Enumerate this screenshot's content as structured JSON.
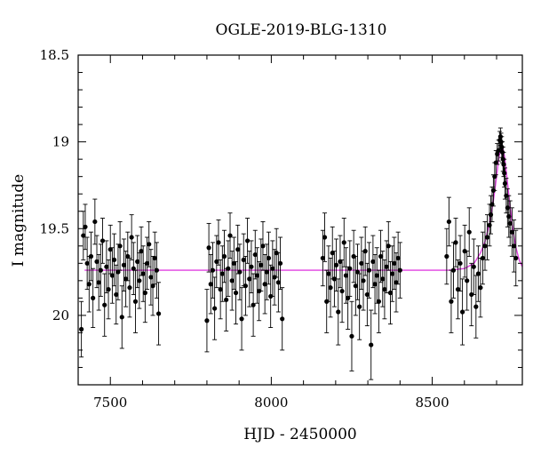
{
  "chart_data": {
    "type": "scatter",
    "title": "OGLE-2019-BLG-1310",
    "xlabel": "HJD - 2450000",
    "ylabel": "I magnitude",
    "xlim": [
      7400,
      8780
    ],
    "ylim": [
      20.4,
      18.5
    ],
    "y_axis_inverted": true,
    "grid": false,
    "x_ticks": [
      "7500",
      "8000",
      "8500"
    ],
    "x_tick_values": [
      7500,
      8000,
      8500
    ],
    "y_ticks": [
      "18.5",
      "19",
      "19.5",
      "20"
    ],
    "y_tick_values": [
      18.5,
      19.0,
      19.5,
      20.0
    ],
    "colors": {
      "points": "#000000",
      "model": "#e040e0",
      "axes": "#000000"
    },
    "series": [
      {
        "kind": "observations",
        "marker": "filled-circle-with-errorbars",
        "x": [
          7410,
          7416,
          7422,
          7428,
          7434,
          7440,
          7446,
          7452,
          7458,
          7464,
          7470,
          7476,
          7482,
          7488,
          7494,
          7500,
          7506,
          7512,
          7518,
          7524,
          7530,
          7536,
          7542,
          7548,
          7554,
          7560,
          7566,
          7572,
          7578,
          7584,
          7590,
          7596,
          7602,
          7608,
          7614,
          7620,
          7626,
          7632,
          7638,
          7644,
          7650,
          7800,
          7806,
          7812,
          7818,
          7824,
          7830,
          7836,
          7842,
          7848,
          7854,
          7860,
          7866,
          7872,
          7878,
          7884,
          7890,
          7896,
          7902,
          7908,
          7914,
          7920,
          7926,
          7932,
          7938,
          7944,
          7950,
          7956,
          7962,
          7968,
          7974,
          7980,
          7986,
          7992,
          7998,
          8004,
          8010,
          8016,
          8022,
          8028,
          8034,
          8160,
          8166,
          8172,
          8178,
          8184,
          8190,
          8196,
          8202,
          8208,
          8214,
          8220,
          8226,
          8232,
          8238,
          8244,
          8250,
          8256,
          8262,
          8268,
          8274,
          8280,
          8286,
          8292,
          8298,
          8304,
          8310,
          8316,
          8322,
          8328,
          8334,
          8340,
          8346,
          8352,
          8358,
          8364,
          8370,
          8376,
          8382,
          8388,
          8394,
          8400,
          8545,
          8552,
          8559,
          8566,
          8573,
          8580,
          8587,
          8594,
          8601,
          8608,
          8615,
          8622,
          8629,
          8636,
          8643,
          8650,
          8657,
          8664,
          8671,
          8678,
          8682,
          8686,
          8690,
          8694,
          8698,
          8702,
          8706,
          8710,
          8712,
          8714,
          8716,
          8718,
          8720,
          8722,
          8724,
          8726,
          8730,
          8734,
          8738,
          8742,
          8748,
          8754,
          8760
        ],
        "y": [
          20.08,
          19.54,
          19.49,
          19.7,
          19.82,
          19.66,
          19.9,
          19.46,
          19.69,
          19.81,
          19.74,
          19.57,
          19.94,
          19.72,
          19.85,
          19.62,
          19.77,
          19.68,
          19.88,
          19.75,
          19.6,
          20.01,
          19.71,
          19.79,
          19.66,
          19.84,
          19.55,
          19.73,
          19.92,
          19.69,
          19.8,
          19.63,
          19.76,
          19.87,
          19.7,
          19.59,
          19.78,
          19.83,
          19.67,
          19.74,
          19.99,
          20.03,
          19.61,
          19.82,
          19.74,
          19.96,
          19.69,
          19.58,
          19.85,
          19.76,
          19.66,
          19.91,
          19.73,
          19.54,
          19.8,
          19.7,
          19.87,
          19.62,
          19.75,
          20.02,
          19.68,
          19.83,
          19.57,
          19.79,
          19.72,
          19.94,
          19.65,
          19.77,
          19.86,
          19.71,
          19.6,
          19.82,
          19.75,
          19.67,
          19.89,
          19.73,
          19.78,
          19.64,
          19.81,
          19.7,
          20.02,
          19.67,
          19.55,
          19.92,
          19.76,
          19.84,
          19.64,
          19.79,
          19.71,
          19.98,
          19.69,
          19.86,
          19.58,
          19.77,
          19.9,
          19.73,
          20.12,
          19.66,
          19.83,
          19.75,
          19.95,
          19.7,
          19.8,
          19.63,
          19.88,
          19.74,
          20.17,
          19.69,
          19.82,
          19.77,
          19.92,
          19.66,
          19.79,
          19.85,
          19.72,
          19.6,
          19.87,
          19.76,
          19.7,
          19.81,
          19.67,
          19.74,
          19.66,
          19.46,
          19.92,
          19.74,
          19.58,
          19.85,
          19.7,
          19.98,
          19.63,
          19.8,
          19.52,
          19.88,
          19.72,
          19.95,
          19.76,
          19.84,
          19.67,
          19.6,
          19.55,
          19.48,
          19.42,
          19.36,
          19.28,
          19.2,
          19.12,
          19.07,
          19.05,
          18.99,
          18.97,
          19.0,
          19.03,
          19.06,
          19.1,
          19.13,
          19.18,
          19.24,
          19.31,
          19.38,
          19.43,
          19.47,
          19.52,
          19.6,
          19.67
        ],
        "yerr": [
          0.16,
          0.14,
          0.13,
          0.15,
          0.16,
          0.14,
          0.17,
          0.13,
          0.15,
          0.16,
          0.15,
          0.13,
          0.18,
          0.15,
          0.17,
          0.14,
          0.16,
          0.15,
          0.17,
          0.16,
          0.14,
          0.18,
          0.15,
          0.16,
          0.14,
          0.17,
          0.13,
          0.15,
          0.18,
          0.15,
          0.16,
          0.14,
          0.16,
          0.17,
          0.15,
          0.13,
          0.16,
          0.17,
          0.15,
          0.16,
          0.18,
          0.18,
          0.14,
          0.17,
          0.16,
          0.18,
          0.15,
          0.13,
          0.17,
          0.16,
          0.15,
          0.18,
          0.16,
          0.13,
          0.17,
          0.15,
          0.18,
          0.14,
          0.16,
          0.18,
          0.15,
          0.17,
          0.13,
          0.16,
          0.15,
          0.18,
          0.14,
          0.16,
          0.17,
          0.15,
          0.14,
          0.17,
          0.16,
          0.15,
          0.18,
          0.16,
          0.16,
          0.14,
          0.17,
          0.15,
          0.18,
          0.16,
          0.14,
          0.18,
          0.16,
          0.17,
          0.15,
          0.16,
          0.15,
          0.19,
          0.15,
          0.18,
          0.14,
          0.16,
          0.18,
          0.16,
          0.2,
          0.15,
          0.17,
          0.16,
          0.19,
          0.15,
          0.17,
          0.14,
          0.18,
          0.16,
          0.2,
          0.15,
          0.17,
          0.16,
          0.18,
          0.15,
          0.16,
          0.17,
          0.15,
          0.14,
          0.18,
          0.16,
          0.15,
          0.17,
          0.15,
          0.16,
          0.16,
          0.14,
          0.18,
          0.16,
          0.14,
          0.17,
          0.16,
          0.19,
          0.15,
          0.17,
          0.14,
          0.18,
          0.16,
          0.18,
          0.16,
          0.17,
          0.15,
          0.14,
          0.13,
          0.12,
          0.11,
          0.1,
          0.09,
          0.08,
          0.07,
          0.06,
          0.06,
          0.05,
          0.05,
          0.05,
          0.06,
          0.06,
          0.07,
          0.07,
          0.08,
          0.09,
          0.1,
          0.11,
          0.12,
          0.13,
          0.14,
          0.15,
          0.16
        ]
      },
      {
        "kind": "model",
        "marker": "line",
        "x": [
          7420,
          8550,
          8600,
          8630,
          8650,
          8665,
          8680,
          8690,
          8700,
          8705,
          8710,
          8715,
          8720,
          8725,
          8730,
          8740,
          8750,
          8760,
          8770,
          8780
        ],
        "y": [
          19.74,
          19.74,
          19.73,
          19.7,
          19.64,
          19.57,
          19.45,
          19.34,
          19.2,
          19.12,
          19.06,
          19.03,
          19.04,
          19.09,
          19.17,
          19.34,
          19.5,
          19.61,
          19.68,
          19.72
        ]
      }
    ]
  }
}
